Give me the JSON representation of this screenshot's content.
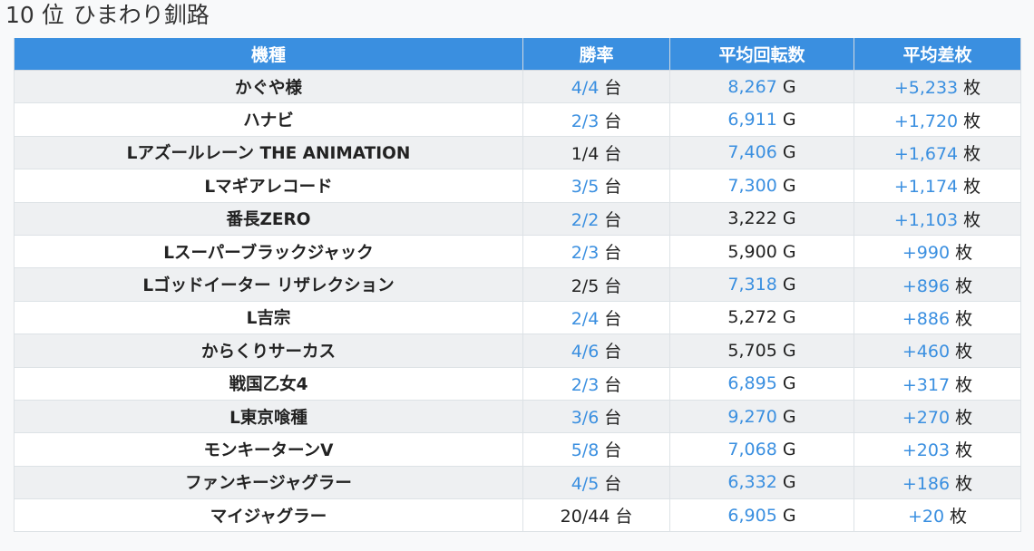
{
  "heading": {
    "rank": "10 位",
    "store": "ひまわり釧路"
  },
  "colors": {
    "header_bg": "#3a8fe0",
    "highlight": "#3a8fe0"
  },
  "columns": [
    "機種",
    "勝率",
    "平均回転数",
    "平均差枚"
  ],
  "rows": [
    {
      "machine": "かぐや様",
      "win": "4/4",
      "win_hl": true,
      "win_unit": "台",
      "spins": "8,267",
      "spins_hl": true,
      "spins_unit": "G",
      "diff": "+5,233",
      "diff_hl": true,
      "diff_unit": "枚"
    },
    {
      "machine": "ハナビ",
      "win": "2/3",
      "win_hl": true,
      "win_unit": "台",
      "spins": "6,911",
      "spins_hl": true,
      "spins_unit": "G",
      "diff": "+1,720",
      "diff_hl": true,
      "diff_unit": "枚"
    },
    {
      "machine": "Lアズールレーン THE ANIMATION",
      "win": "1/4",
      "win_hl": false,
      "win_unit": "台",
      "spins": "7,406",
      "spins_hl": true,
      "spins_unit": "G",
      "diff": "+1,674",
      "diff_hl": true,
      "diff_unit": "枚"
    },
    {
      "machine": "Lマギアレコード",
      "win": "3/5",
      "win_hl": true,
      "win_unit": "台",
      "spins": "7,300",
      "spins_hl": true,
      "spins_unit": "G",
      "diff": "+1,174",
      "diff_hl": true,
      "diff_unit": "枚"
    },
    {
      "machine": "番長ZERO",
      "win": "2/2",
      "win_hl": true,
      "win_unit": "台",
      "spins": "3,222",
      "spins_hl": false,
      "spins_unit": "G",
      "diff": "+1,103",
      "diff_hl": true,
      "diff_unit": "枚"
    },
    {
      "machine": "Lスーパーブラックジャック",
      "win": "2/3",
      "win_hl": true,
      "win_unit": "台",
      "spins": "5,900",
      "spins_hl": false,
      "spins_unit": "G",
      "diff": "+990",
      "diff_hl": true,
      "diff_unit": "枚"
    },
    {
      "machine": "Lゴッドイーター リザレクション",
      "win": "2/5",
      "win_hl": false,
      "win_unit": "台",
      "spins": "7,318",
      "spins_hl": true,
      "spins_unit": "G",
      "diff": "+896",
      "diff_hl": true,
      "diff_unit": "枚"
    },
    {
      "machine": "L吉宗",
      "win": "2/4",
      "win_hl": true,
      "win_unit": "台",
      "spins": "5,272",
      "spins_hl": false,
      "spins_unit": "G",
      "diff": "+886",
      "diff_hl": true,
      "diff_unit": "枚"
    },
    {
      "machine": "からくりサーカス",
      "win": "4/6",
      "win_hl": true,
      "win_unit": "台",
      "spins": "5,705",
      "spins_hl": false,
      "spins_unit": "G",
      "diff": "+460",
      "diff_hl": true,
      "diff_unit": "枚"
    },
    {
      "machine": "戦国乙女4",
      "win": "2/3",
      "win_hl": true,
      "win_unit": "台",
      "spins": "6,895",
      "spins_hl": true,
      "spins_unit": "G",
      "diff": "+317",
      "diff_hl": true,
      "diff_unit": "枚"
    },
    {
      "machine": "L東京喰種",
      "win": "3/6",
      "win_hl": true,
      "win_unit": "台",
      "spins": "9,270",
      "spins_hl": true,
      "spins_unit": "G",
      "diff": "+270",
      "diff_hl": true,
      "diff_unit": "枚"
    },
    {
      "machine": "モンキーターンV",
      "win": "5/8",
      "win_hl": true,
      "win_unit": "台",
      "spins": "7,068",
      "spins_hl": true,
      "spins_unit": "G",
      "diff": "+203",
      "diff_hl": true,
      "diff_unit": "枚"
    },
    {
      "machine": "ファンキージャグラー",
      "win": "4/5",
      "win_hl": true,
      "win_unit": "台",
      "spins": "6,332",
      "spins_hl": true,
      "spins_unit": "G",
      "diff": "+186",
      "diff_hl": true,
      "diff_unit": "枚"
    },
    {
      "machine": "マイジャグラー",
      "win": "20/44",
      "win_hl": false,
      "win_unit": "台",
      "spins": "6,905",
      "spins_hl": true,
      "spins_unit": "G",
      "diff": "+20",
      "diff_hl": true,
      "diff_unit": "枚"
    }
  ]
}
